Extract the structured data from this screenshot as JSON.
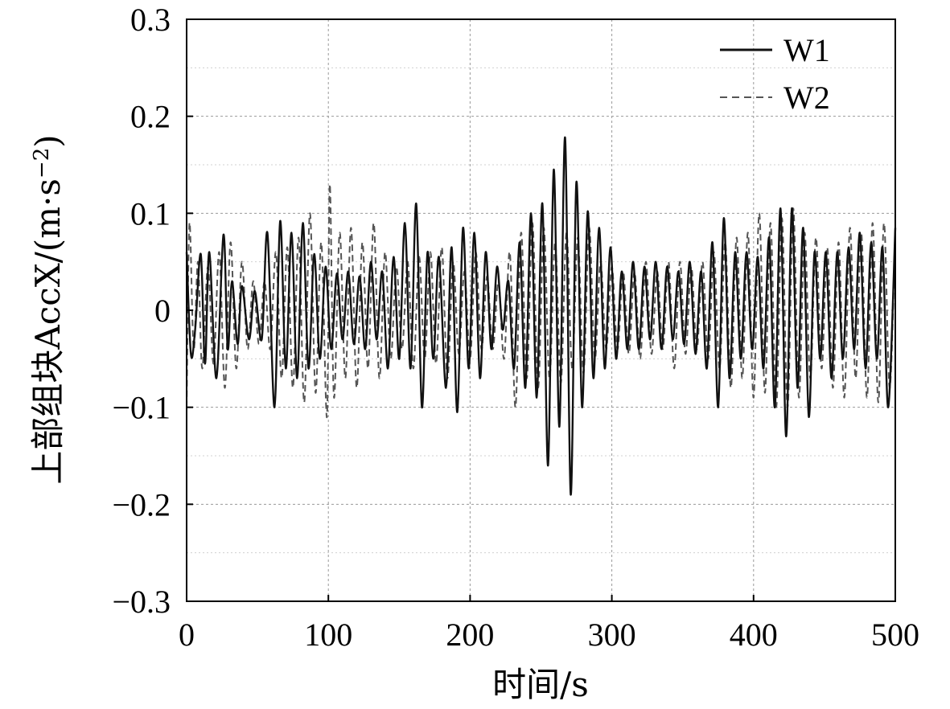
{
  "chart_data": {
    "type": "line",
    "xlabel": "时间/s",
    "ylabel_main": "上部组块AccX/(m·s",
    "ylabel_sup": "−2",
    "ylabel_close": ")",
    "xlim": [
      0,
      500
    ],
    "ylim": [
      -0.3,
      0.3
    ],
    "xticks": [
      0,
      100,
      200,
      300,
      400,
      500
    ],
    "yticks": [
      -0.3,
      -0.2,
      -0.1,
      0,
      0.1,
      0.2,
      0.3
    ],
    "xtick_labels": [
      "0",
      "100",
      "200",
      "300",
      "400",
      "500"
    ],
    "ytick_labels": [
      "−0.3",
      "−0.2",
      "−0.1",
      "0",
      "0.1",
      "0.2",
      "0.3"
    ],
    "grid": true,
    "legend_position": "top-right",
    "series": [
      {
        "name": "W1",
        "style": "solid",
        "color": "#111111",
        "x": [
          0,
          3,
          6,
          10,
          13,
          16,
          21,
          26,
          29,
          32,
          36,
          39,
          44,
          48,
          53,
          57,
          62,
          66,
          70,
          74,
          78,
          82,
          86,
          90,
          94,
          98,
          102,
          106,
          110,
          114,
          118,
          122,
          126,
          130,
          134,
          138,
          142,
          146,
          150,
          154,
          158,
          162,
          166,
          170,
          174,
          178,
          183,
          187,
          191,
          195,
          199,
          203,
          207,
          211,
          215,
          219,
          223,
          227,
          231,
          235,
          239,
          243,
          247,
          251,
          255,
          259,
          263,
          267,
          271,
          275,
          279,
          283,
          287,
          291,
          295,
          299,
          303,
          307,
          311,
          315,
          319,
          323,
          327,
          331,
          335,
          339,
          343,
          347,
          351,
          355,
          359,
          363,
          367,
          371,
          375,
          379,
          383,
          387,
          391,
          395,
          399,
          403,
          407,
          411,
          415,
          419,
          423,
          427,
          431,
          435,
          439,
          443,
          447,
          451,
          455,
          459,
          463,
          467,
          471,
          475,
          479,
          483,
          487,
          491,
          495,
          500
        ],
        "y": [
          0.06,
          -0.045,
          -0.02,
          0.058,
          -0.055,
          0.06,
          -0.07,
          0.078,
          -0.04,
          0.03,
          -0.035,
          0.025,
          -0.03,
          0.02,
          -0.03,
          0.08,
          -0.1,
          0.092,
          -0.06,
          0.08,
          -0.07,
          0.09,
          -0.06,
          0.058,
          -0.05,
          0.045,
          -0.04,
          0.038,
          -0.03,
          0.04,
          -0.035,
          0.035,
          -0.04,
          0.05,
          -0.03,
          0.04,
          -0.06,
          0.055,
          -0.05,
          0.09,
          -0.06,
          0.11,
          -0.1,
          0.06,
          -0.05,
          0.055,
          -0.08,
          0.065,
          -0.105,
          0.085,
          -0.06,
          0.08,
          -0.07,
          0.06,
          -0.04,
          0.045,
          -0.02,
          0.03,
          -0.06,
          0.07,
          -0.08,
          0.1,
          -0.09,
          0.11,
          -0.16,
          0.145,
          -0.12,
          0.178,
          -0.19,
          0.132,
          -0.1,
          0.102,
          -0.07,
          0.085,
          -0.06,
          0.065,
          -0.05,
          0.04,
          -0.04,
          0.05,
          -0.04,
          0.045,
          -0.03,
          0.05,
          -0.04,
          0.045,
          -0.03,
          0.04,
          -0.035,
          0.05,
          -0.045,
          0.04,
          -0.06,
          0.07,
          -0.1,
          0.095,
          -0.07,
          0.06,
          -0.05,
          0.06,
          -0.04,
          0.055,
          -0.06,
          0.075,
          -0.1,
          0.105,
          -0.13,
          0.105,
          -0.08,
          0.085,
          -0.11,
          0.06,
          -0.05,
          0.06,
          -0.07,
          0.06,
          -0.05,
          0.065,
          -0.04,
          0.08,
          -0.06,
          0.07,
          -0.05,
          0.065,
          -0.1,
          0.085
        ]
      },
      {
        "name": "W2",
        "style": "dashed",
        "color": "#555555",
        "x": [
          0,
          2,
          5,
          8,
          11,
          15,
          19,
          23,
          27,
          31,
          35,
          39,
          43,
          47,
          51,
          55,
          59,
          63,
          67,
          71,
          75,
          79,
          83,
          87,
          91,
          95,
          99,
          101,
          104,
          108,
          112,
          116,
          120,
          124,
          128,
          132,
          136,
          140,
          144,
          148,
          152,
          156,
          160,
          164,
          168,
          172,
          176,
          180,
          184,
          188,
          192,
          196,
          200,
          204,
          208,
          212,
          216,
          220,
          224,
          228,
          232,
          236,
          240,
          244,
          248,
          252,
          256,
          260,
          264,
          268,
          272,
          276,
          280,
          284,
          288,
          292,
          296,
          300,
          304,
          308,
          312,
          316,
          320,
          324,
          328,
          332,
          336,
          340,
          344,
          348,
          352,
          356,
          360,
          364,
          368,
          372,
          376,
          380,
          384,
          388,
          392,
          396,
          400,
          404,
          408,
          412,
          416,
          420,
          424,
          428,
          432,
          436,
          440,
          444,
          448,
          452,
          456,
          460,
          464,
          468,
          472,
          476,
          480,
          484,
          488,
          492,
          496,
          500
        ],
        "y": [
          -0.1,
          0.09,
          -0.04,
          0.05,
          -0.06,
          0.045,
          -0.055,
          0.06,
          -0.08,
          0.07,
          -0.06,
          0.05,
          -0.04,
          0.03,
          -0.035,
          0.03,
          -0.04,
          0.06,
          -0.07,
          0.065,
          -0.08,
          0.075,
          -0.095,
          0.1,
          -0.085,
          0.07,
          -0.11,
          0.13,
          -0.09,
          0.08,
          -0.07,
          0.085,
          -0.08,
          0.07,
          -0.06,
          0.09,
          -0.07,
          0.06,
          -0.05,
          0.045,
          -0.04,
          0.05,
          -0.06,
          0.055,
          -0.05,
          0.06,
          -0.055,
          0.065,
          -0.07,
          0.05,
          -0.045,
          0.04,
          -0.05,
          0.06,
          -0.04,
          0.035,
          -0.04,
          0.03,
          -0.05,
          0.06,
          -0.1,
          0.08,
          -0.07,
          0.09,
          -0.08,
          0.085,
          -0.07,
          0.07,
          -0.075,
          0.08,
          -0.06,
          0.075,
          -0.065,
          0.085,
          -0.05,
          0.05,
          -0.04,
          0.045,
          -0.04,
          0.04,
          -0.045,
          0.04,
          -0.05,
          0.05,
          -0.045,
          0.04,
          -0.04,
          0.05,
          -0.06,
          0.05,
          -0.045,
          0.045,
          -0.04,
          0.05,
          -0.05,
          0.06,
          -0.06,
          0.07,
          -0.08,
          0.075,
          -0.07,
          0.08,
          -0.09,
          0.1,
          -0.085,
          0.09,
          -0.1,
          0.095,
          -0.1,
          0.105,
          -0.09,
          0.08,
          -0.07,
          0.075,
          -0.06,
          0.065,
          -0.08,
          0.07,
          -0.09,
          0.085,
          -0.07,
          0.08,
          -0.09,
          0.09,
          -0.095,
          0.09,
          -0.08,
          0.085
        ]
      }
    ]
  }
}
